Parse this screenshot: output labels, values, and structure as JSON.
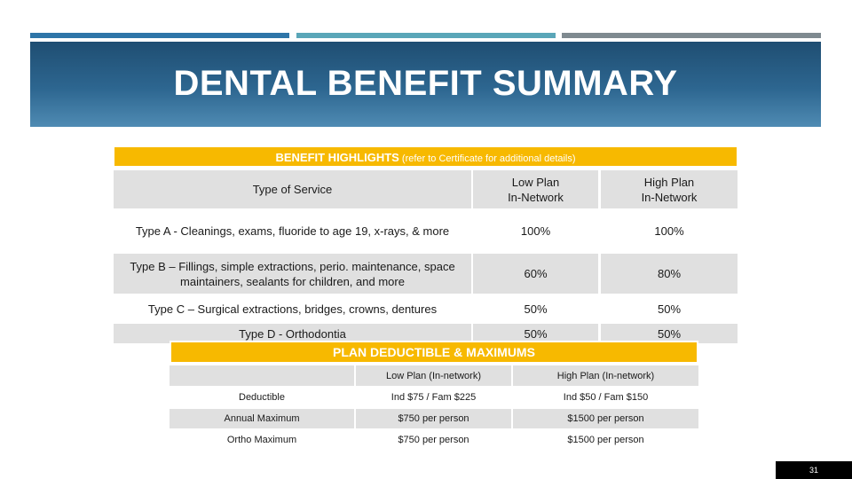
{
  "slide": {
    "title": "DENTAL BENEFIT SUMMARY",
    "page_number": "31"
  },
  "benefit_highlights": {
    "header_main": "BENEFIT HIGHLIGHTS",
    "header_sub": " (refer to Certificate for additional details)",
    "columns": [
      "Type of Service",
      "Low Plan\nIn-Network",
      "High Plan\nIn-Network"
    ],
    "rows": [
      {
        "service": "Type A - Cleanings, exams, fluoride to age 19, x-rays, & more",
        "low": "100%",
        "high": "100%"
      },
      {
        "service": "Type B – Fillings, simple extractions, perio. maintenance, space maintainers, sealants for children, and more",
        "low": "60%",
        "high": "80%"
      },
      {
        "service": "Type C – Surgical extractions, bridges, crowns, dentures",
        "low": "50%",
        "high": "50%"
      },
      {
        "service": "Type D - Orthodontia",
        "low": "50%",
        "high": "50%"
      }
    ]
  },
  "plan_deductible": {
    "header": "PLAN DEDUCTIBLE & MAXIMUMS",
    "columns": [
      "",
      "Low Plan (In-network)",
      "High Plan (In-network)"
    ],
    "rows": [
      {
        "label": "Deductible",
        "low": "Ind $75 / Fam $225",
        "high": "Ind $50 / Fam $150"
      },
      {
        "label": "Annual Maximum",
        "low": "$750 per person",
        "high": "$1500 per person"
      },
      {
        "label": "Ortho Maximum",
        "low": "$750 per person",
        "high": "$1500 per person"
      }
    ]
  },
  "colors": {
    "accent": "#f7b900",
    "banner": "#2d6690",
    "row_shade": "#e0e0e0"
  }
}
